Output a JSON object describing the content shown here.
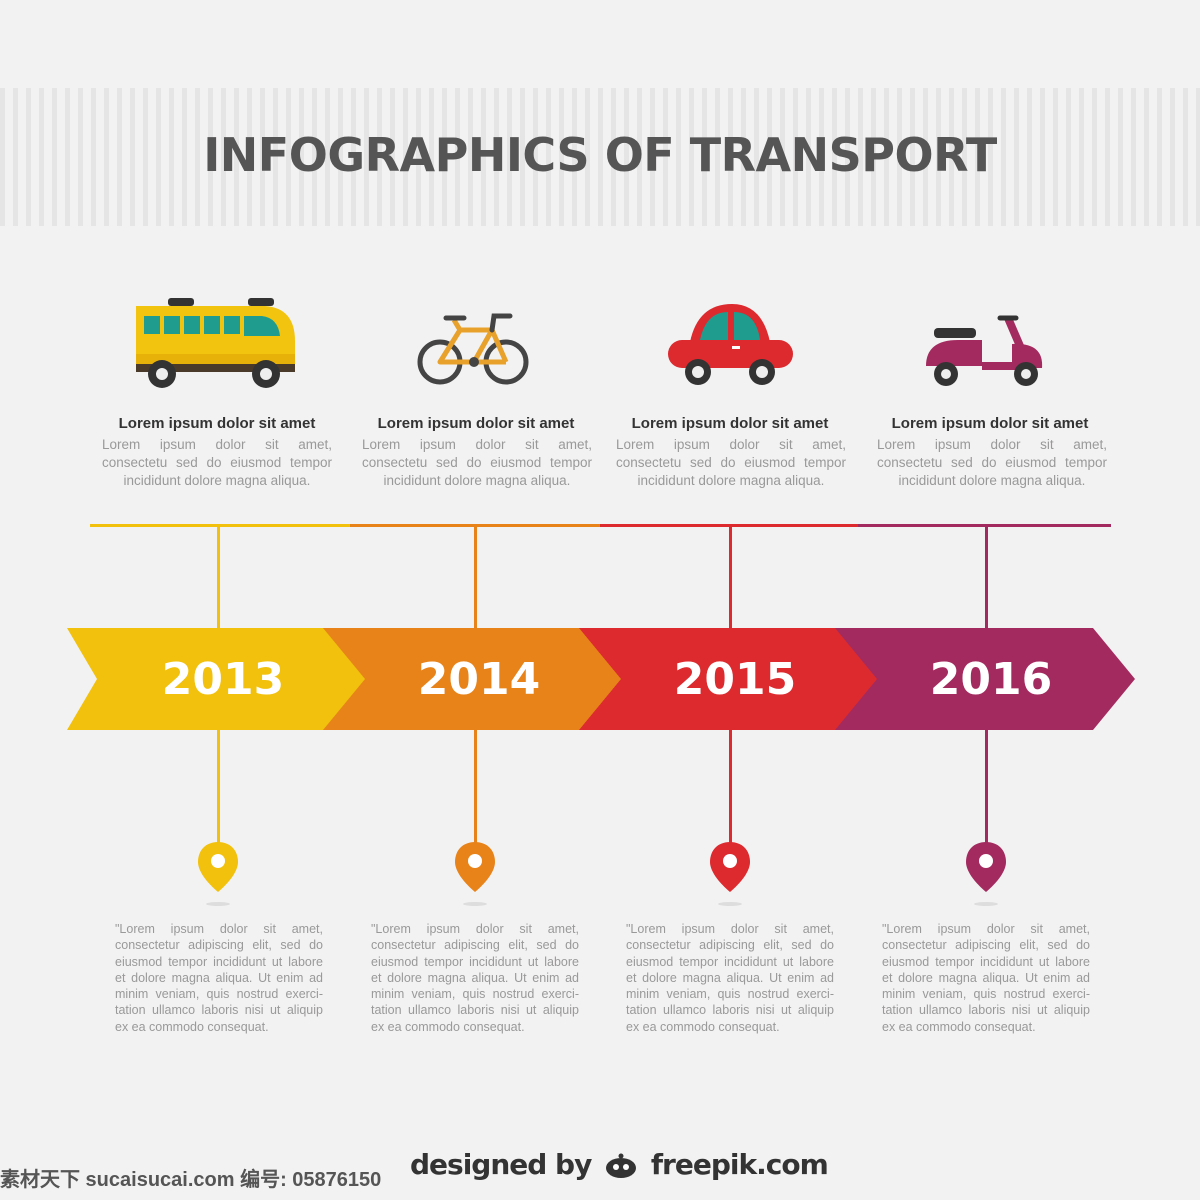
{
  "title": "INFOGRAPHICS OF TRANSPORT",
  "colors": {
    "yellow": "#f1c10d",
    "orange": "#e8831a",
    "red": "#dc2a2f",
    "purple": "#a32a5f"
  },
  "items": [
    {
      "icon": "bus-icon",
      "heading": "Lorem ipsum dolor sit amet",
      "desc": "Lorem ipsum dolor sit amet, consectetu sed do eiusmod tempor incididunt dolore magna aliqua.",
      "year": "2013",
      "quote": "\"Lorem ipsum dolor sit amet, consectetur adipiscing elit, sed do eiusmod tempor incididunt ut labore et dolore magna aliqua. Ut enim ad minim veniam, quis nostrud exerci-tation ullamco laboris nisi ut aliquip ex ea commodo consequat."
    },
    {
      "icon": "bicycle-icon",
      "heading": "Lorem ipsum dolor sit amet",
      "desc": "Lorem ipsum dolor sit amet, consectetu sed do eiusmod tempor incididunt dolore magna aliqua.",
      "year": "2014",
      "quote": "\"Lorem ipsum dolor sit amet, consectetur adipiscing elit, sed do eiusmod tempor incididunt ut labore et dolore magna aliqua. Ut enim ad minim veniam, quis nostrud exerci-tation ullamco laboris nisi ut aliquip ex ea commodo consequat."
    },
    {
      "icon": "car-icon",
      "heading": "Lorem ipsum dolor sit amet",
      "desc": "Lorem ipsum dolor sit amet, consectetu sed do eiusmod tempor incididunt dolore magna aliqua.",
      "year": "2015",
      "quote": "\"Lorem ipsum dolor sit amet, consectetur adipiscing elit, sed do eiusmod tempor incididunt ut labore et dolore magna aliqua. Ut enim ad minim veniam, quis nostrud exerci-tation ullamco laboris nisi ut aliquip ex ea commodo consequat."
    },
    {
      "icon": "scooter-icon",
      "heading": "Lorem ipsum dolor sit amet",
      "desc": "Lorem ipsum dolor sit amet, consectetu sed do eiusmod tempor incididunt dolore magna aliqua.",
      "year": "2016",
      "quote": "\"Lorem ipsum dolor sit amet, consectetur adipiscing elit, sed do eiusmod tempor incididunt ut labore et dolore magna aliqua. Ut enim ad minim veniam, quis nostrud exerci-tation ullamco laboris nisi ut aliquip ex ea commodo consequat."
    }
  ],
  "footer": {
    "watermark": "素材天下 sucaisucai.com 编号: 05876150",
    "credit_left": "designed by",
    "credit_right": "freepik.com"
  }
}
